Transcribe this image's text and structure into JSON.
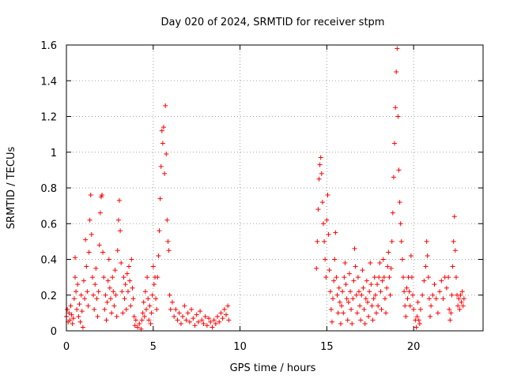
{
  "chart_data": {
    "type": "scatter",
    "title": "Day 020 of 2024, SRMTID for receiver stpm",
    "xlabel": "GPS time / hours",
    "ylabel": "SRMTID / TECUs",
    "xlim": [
      0,
      24
    ],
    "ylim": [
      0,
      1.6
    ],
    "grid": true,
    "marker": "+",
    "color": "#ff0000",
    "x_ticks": [
      0,
      5,
      10,
      15,
      20
    ],
    "x_tick_labels": [
      "0",
      "5",
      "10",
      "15",
      "20"
    ],
    "y_ticks": [
      0,
      0.2,
      0.4,
      0.6,
      0.8,
      1,
      1.2,
      1.4,
      1.6
    ],
    "y_tick_labels": [
      "0",
      "0.2",
      "0.4",
      "0.6",
      "0.8",
      "1",
      "1.2",
      "1.4",
      "1.6"
    ],
    "series": [
      {
        "name": "SRMTID",
        "points": [
          [
            0.0,
            0.08
          ],
          [
            0.05,
            0.12
          ],
          [
            0.1,
            0.05
          ],
          [
            0.15,
            0.1
          ],
          [
            0.2,
            0.06
          ],
          [
            0.25,
            0.14
          ],
          [
            0.3,
            0.09
          ],
          [
            0.35,
            0.04
          ],
          [
            0.4,
            0.07
          ],
          [
            0.45,
            0.18
          ],
          [
            0.5,
            0.3
          ],
          [
            0.5,
            0.41
          ],
          [
            0.55,
            0.22
          ],
          [
            0.6,
            0.12
          ],
          [
            0.65,
            0.26
          ],
          [
            0.7,
            0.08
          ],
          [
            0.75,
            0.15
          ],
          [
            0.8,
            0.05
          ],
          [
            0.85,
            0.2
          ],
          [
            0.9,
            0.11
          ],
          [
            0.95,
            0.02
          ],
          [
            1.0,
            0.28
          ],
          [
            1.05,
            0.18
          ],
          [
            1.1,
            0.51
          ],
          [
            1.15,
            0.36
          ],
          [
            1.2,
            0.22
          ],
          [
            1.25,
            0.14
          ],
          [
            1.3,
            0.44
          ],
          [
            1.35,
            0.62
          ],
          [
            1.4,
            0.76
          ],
          [
            1.45,
            0.54
          ],
          [
            1.5,
            0.3
          ],
          [
            1.55,
            0.2
          ],
          [
            1.6,
            0.12
          ],
          [
            1.65,
            0.26
          ],
          [
            1.7,
            0.35
          ],
          [
            1.75,
            0.18
          ],
          [
            1.8,
            0.08
          ],
          [
            1.85,
            0.22
          ],
          [
            1.9,
            0.48
          ],
          [
            1.95,
            0.66
          ],
          [
            2.0,
            0.75
          ],
          [
            2.05,
            0.76
          ],
          [
            2.1,
            0.44
          ],
          [
            2.15,
            0.3
          ],
          [
            2.2,
            0.12
          ],
          [
            2.25,
            0.2
          ],
          [
            2.3,
            0.06
          ],
          [
            2.35,
            0.16
          ],
          [
            2.4,
            0.28
          ],
          [
            2.45,
            0.4
          ],
          [
            2.5,
            0.24
          ],
          [
            2.55,
            0.18
          ],
          [
            2.6,
            0.1
          ],
          [
            2.65,
            0.3
          ],
          [
            2.7,
            0.22
          ],
          [
            2.75,
            0.14
          ],
          [
            2.8,
            0.34
          ],
          [
            2.85,
            0.2
          ],
          [
            2.9,
            0.08
          ],
          [
            2.95,
            0.45
          ],
          [
            3.0,
            0.62
          ],
          [
            3.05,
            0.73
          ],
          [
            3.1,
            0.56
          ],
          [
            3.15,
            0.38
          ],
          [
            3.2,
            0.22
          ],
          [
            3.25,
            0.1
          ],
          [
            3.3,
            0.3
          ],
          [
            3.35,
            0.18
          ],
          [
            3.4,
            0.26
          ],
          [
            3.45,
            0.12
          ],
          [
            3.5,
            0.32
          ],
          [
            3.55,
            0.22
          ],
          [
            3.6,
            0.36
          ],
          [
            3.65,
            0.28
          ],
          [
            3.7,
            0.14
          ],
          [
            3.75,
            0.4
          ],
          [
            3.8,
            0.24
          ],
          [
            3.85,
            0.18
          ],
          [
            3.9,
            0.08
          ],
          [
            3.95,
            0.03
          ],
          [
            4.0,
            0.06
          ],
          [
            4.1,
            0.02
          ],
          [
            4.2,
            0.04
          ],
          [
            4.3,
            0.01
          ],
          [
            4.35,
            0.06
          ],
          [
            4.4,
            0.1
          ],
          [
            4.45,
            0.16
          ],
          [
            4.5,
            0.08
          ],
          [
            4.55,
            0.22
          ],
          [
            4.6,
            0.12
          ],
          [
            4.65,
            0.3
          ],
          [
            4.7,
            0.18
          ],
          [
            4.75,
            0.06
          ],
          [
            4.8,
            0.14
          ],
          [
            4.85,
            0.04
          ],
          [
            4.9,
            0.1
          ],
          [
            4.95,
            0.2
          ],
          [
            5.0,
            0.36
          ],
          [
            5.05,
            0.26
          ],
          [
            5.1,
            0.3
          ],
          [
            5.15,
            0.18
          ],
          [
            5.2,
            0.12
          ],
          [
            5.25,
            0.3
          ],
          [
            5.3,
            0.42
          ],
          [
            5.35,
            0.56
          ],
          [
            5.4,
            0.74
          ],
          [
            5.45,
            0.92
          ],
          [
            5.5,
            1.12
          ],
          [
            5.55,
            1.05
          ],
          [
            5.6,
            1.14
          ],
          [
            5.65,
            0.88
          ],
          [
            5.7,
            1.26
          ],
          [
            5.75,
            0.99
          ],
          [
            5.8,
            0.62
          ],
          [
            5.85,
            0.5
          ],
          [
            5.9,
            0.45
          ],
          [
            5.95,
            0.2
          ],
          [
            6.0,
            0.12
          ],
          [
            6.1,
            0.16
          ],
          [
            6.2,
            0.08
          ],
          [
            6.3,
            0.12
          ],
          [
            6.4,
            0.06
          ],
          [
            6.5,
            0.1
          ],
          [
            6.6,
            0.04
          ],
          [
            6.7,
            0.08
          ],
          [
            6.8,
            0.14
          ],
          [
            6.9,
            0.06
          ],
          [
            7.0,
            0.1
          ],
          [
            7.1,
            0.05
          ],
          [
            7.2,
            0.12
          ],
          [
            7.3,
            0.07
          ],
          [
            7.4,
            0.03
          ],
          [
            7.5,
            0.09
          ],
          [
            7.6,
            0.05
          ],
          [
            7.7,
            0.11
          ],
          [
            7.8,
            0.06
          ],
          [
            7.9,
            0.04
          ],
          [
            8.0,
            0.08
          ],
          [
            8.1,
            0.03
          ],
          [
            8.2,
            0.07
          ],
          [
            8.3,
            0.05
          ],
          [
            8.4,
            0.02
          ],
          [
            8.5,
            0.06
          ],
          [
            8.6,
            0.04
          ],
          [
            8.7,
            0.08
          ],
          [
            8.8,
            0.05
          ],
          [
            8.9,
            0.1
          ],
          [
            9.0,
            0.07
          ],
          [
            9.1,
            0.12
          ],
          [
            9.2,
            0.09
          ],
          [
            9.3,
            0.14
          ],
          [
            9.35,
            0.06
          ],
          [
            14.4,
            0.35
          ],
          [
            14.45,
            0.5
          ],
          [
            14.5,
            0.68
          ],
          [
            14.55,
            0.85
          ],
          [
            14.6,
            0.93
          ],
          [
            14.65,
            0.97
          ],
          [
            14.7,
            0.88
          ],
          [
            14.75,
            0.72
          ],
          [
            14.8,
            0.6
          ],
          [
            14.85,
            0.5
          ],
          [
            14.9,
            0.4
          ],
          [
            14.95,
            0.3
          ],
          [
            15.0,
            0.62
          ],
          [
            15.05,
            0.76
          ],
          [
            15.1,
            0.54
          ],
          [
            15.15,
            0.34
          ],
          [
            15.2,
            0.22
          ],
          [
            15.25,
            0.12
          ],
          [
            15.3,
            0.05
          ],
          [
            15.35,
            0.18
          ],
          [
            15.4,
            0.28
          ],
          [
            15.45,
            0.4
          ],
          [
            15.5,
            0.55
          ],
          [
            15.55,
            0.3
          ],
          [
            15.6,
            0.2
          ],
          [
            15.65,
            0.1
          ],
          [
            15.7,
            0.24
          ],
          [
            15.75,
            0.16
          ],
          [
            15.8,
            0.04
          ],
          [
            15.85,
            0.14
          ],
          [
            15.9,
            0.22
          ],
          [
            15.95,
            0.1
          ],
          [
            16.0,
            0.3
          ],
          [
            16.05,
            0.38
          ],
          [
            16.1,
            0.26
          ],
          [
            16.15,
            0.18
          ],
          [
            16.2,
            0.06
          ],
          [
            16.25,
            0.16
          ],
          [
            16.3,
            0.32
          ],
          [
            16.35,
            0.22
          ],
          [
            16.4,
            0.12
          ],
          [
            16.45,
            0.04
          ],
          [
            16.5,
            0.18
          ],
          [
            16.55,
            0.28
          ],
          [
            16.6,
            0.46
          ],
          [
            16.65,
            0.36
          ],
          [
            16.7,
            0.2
          ],
          [
            16.75,
            0.1
          ],
          [
            16.8,
            0.3
          ],
          [
            16.85,
            0.22
          ],
          [
            16.9,
            0.14
          ],
          [
            16.95,
            0.06
          ],
          [
            17.0,
            0.2
          ],
          [
            17.05,
            0.34
          ],
          [
            17.1,
            0.24
          ],
          [
            17.15,
            0.12
          ],
          [
            17.2,
            0.04
          ],
          [
            17.25,
            0.18
          ],
          [
            17.3,
            0.28
          ],
          [
            17.35,
            0.16
          ],
          [
            17.4,
            0.08
          ],
          [
            17.45,
            0.22
          ],
          [
            17.5,
            0.38
          ],
          [
            17.55,
            0.26
          ],
          [
            17.6,
            0.14
          ],
          [
            17.65,
            0.06
          ],
          [
            17.7,
            0.18
          ],
          [
            17.75,
            0.3
          ],
          [
            17.8,
            0.2
          ],
          [
            17.85,
            0.1
          ],
          [
            17.9,
            0.26
          ],
          [
            17.95,
            0.14
          ],
          [
            18.0,
            0.3
          ],
          [
            18.05,
            0.38
          ],
          [
            18.1,
            0.22
          ],
          [
            18.15,
            0.12
          ],
          [
            18.2,
            0.28
          ],
          [
            18.25,
            0.4
          ],
          [
            18.3,
            0.3
          ],
          [
            18.35,
            0.18
          ],
          [
            18.4,
            0.1
          ],
          [
            18.45,
            0.24
          ],
          [
            18.5,
            0.36
          ],
          [
            18.55,
            0.44
          ],
          [
            18.6,
            0.3
          ],
          [
            18.65,
            0.2
          ],
          [
            18.7,
            0.35
          ],
          [
            18.75,
            0.5
          ],
          [
            18.8,
            0.66
          ],
          [
            18.85,
            0.86
          ],
          [
            18.9,
            1.05
          ],
          [
            18.95,
            1.25
          ],
          [
            19.0,
            1.45
          ],
          [
            19.05,
            1.58
          ],
          [
            19.1,
            1.2
          ],
          [
            19.15,
            0.9
          ],
          [
            19.2,
            0.72
          ],
          [
            19.25,
            0.6
          ],
          [
            19.3,
            0.5
          ],
          [
            19.35,
            0.4
          ],
          [
            19.4,
            0.3
          ],
          [
            19.45,
            0.22
          ],
          [
            19.5,
            0.14
          ],
          [
            19.55,
            0.08
          ],
          [
            19.6,
            0.24
          ],
          [
            19.65,
            0.18
          ],
          [
            19.7,
            0.3
          ],
          [
            19.75,
            0.22
          ],
          [
            19.8,
            0.14
          ],
          [
            19.85,
            0.42
          ],
          [
            19.9,
            0.3
          ],
          [
            19.95,
            0.2
          ],
          [
            20.0,
            0.12
          ],
          [
            20.1,
            0.06
          ],
          [
            20.15,
            0.02
          ],
          [
            20.2,
            0.08
          ],
          [
            20.25,
            0.16
          ],
          [
            20.3,
            0.06
          ],
          [
            20.35,
            0.04
          ],
          [
            20.4,
            0.12
          ],
          [
            20.5,
            0.2
          ],
          [
            20.6,
            0.28
          ],
          [
            20.7,
            0.36
          ],
          [
            20.75,
            0.5
          ],
          [
            20.8,
            0.42
          ],
          [
            20.85,
            0.3
          ],
          [
            20.9,
            0.18
          ],
          [
            20.95,
            0.08
          ],
          [
            21.0,
            0.14
          ],
          [
            21.1,
            0.2
          ],
          [
            21.2,
            0.26
          ],
          [
            21.3,
            0.18
          ],
          [
            21.4,
            0.1
          ],
          [
            21.5,
            0.22
          ],
          [
            21.6,
            0.28
          ],
          [
            21.7,
            0.18
          ],
          [
            21.8,
            0.3
          ],
          [
            21.9,
            0.24
          ],
          [
            22.0,
            0.3
          ],
          [
            22.05,
            0.12
          ],
          [
            22.1,
            0.06
          ],
          [
            22.15,
            0.1
          ],
          [
            22.2,
            0.2
          ],
          [
            22.25,
            0.36
          ],
          [
            22.3,
            0.5
          ],
          [
            22.35,
            0.64
          ],
          [
            22.4,
            0.45
          ],
          [
            22.45,
            0.3
          ],
          [
            22.5,
            0.2
          ],
          [
            22.55,
            0.14
          ],
          [
            22.6,
            0.18
          ],
          [
            22.65,
            0.12
          ],
          [
            22.7,
            0.2
          ],
          [
            22.75,
            0.16
          ],
          [
            22.8,
            0.22
          ],
          [
            22.85,
            0.14
          ],
          [
            22.9,
            0.18
          ]
        ]
      }
    ]
  }
}
